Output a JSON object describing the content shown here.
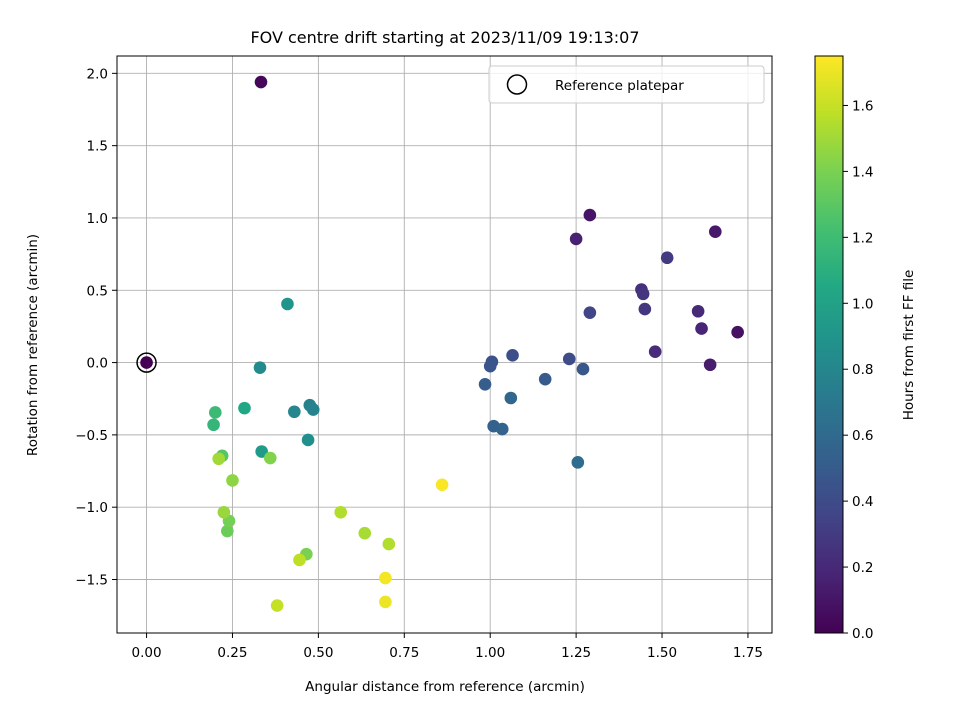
{
  "chart_data": {
    "type": "scatter",
    "title": "FOV centre drift starting at 2023/11/09 19:13:07",
    "xlabel": "Angular distance from reference (arcmin)",
    "ylabel": "Rotation from reference (arcmin)",
    "xlim": [
      -0.086,
      1.82
    ],
    "ylim": [
      -1.87,
      2.12
    ],
    "grid": true,
    "legend": {
      "placement": "top-right",
      "label": "Reference platepar"
    },
    "reference": {
      "x": 0.0,
      "y": 0.0
    },
    "xticks": [
      0.0,
      0.25,
      0.5,
      0.75,
      1.0,
      1.25,
      1.5,
      1.75
    ],
    "xtick_labels": [
      "0.00",
      "0.25",
      "0.50",
      "0.75",
      "1.00",
      "1.25",
      "1.50",
      "1.75"
    ],
    "yticks": [
      -1.5,
      -1.0,
      -0.5,
      0.0,
      0.5,
      1.0,
      1.5,
      2.0
    ],
    "ytick_labels": [
      "−1.5",
      "−1.0",
      "−0.5",
      "0.0",
      "0.5",
      "1.0",
      "1.5",
      "2.0"
    ],
    "colorbar": {
      "label": "Hours from first FF file",
      "colormap": "viridis",
      "range": [
        0.0,
        1.75
      ],
      "ticks": [
        0.0,
        0.2,
        0.4,
        0.6,
        0.8,
        1.0,
        1.2,
        1.4,
        1.6
      ],
      "tick_labels": [
        "0.0",
        "0.2",
        "0.4",
        "0.6",
        "0.8",
        "1.0",
        "1.2",
        "1.4",
        "1.6"
      ]
    },
    "points": [
      {
        "x": 0.0,
        "y": 0.0,
        "c": 0.0
      },
      {
        "x": 0.333,
        "y": 1.94,
        "c": 0.03
      },
      {
        "x": 1.72,
        "y": 0.21,
        "c": 0.08
      },
      {
        "x": 1.29,
        "y": 1.02,
        "c": 0.1
      },
      {
        "x": 1.655,
        "y": 0.905,
        "c": 0.12
      },
      {
        "x": 1.64,
        "y": -0.015,
        "c": 0.14
      },
      {
        "x": 1.25,
        "y": 0.855,
        "c": 0.16
      },
      {
        "x": 1.615,
        "y": 0.235,
        "c": 0.18
      },
      {
        "x": 1.605,
        "y": 0.355,
        "c": 0.2
      },
      {
        "x": 1.48,
        "y": 0.075,
        "c": 0.22
      },
      {
        "x": 1.44,
        "y": 0.505,
        "c": 0.24
      },
      {
        "x": 1.445,
        "y": 0.475,
        "c": 0.26
      },
      {
        "x": 1.45,
        "y": 0.37,
        "c": 0.28
      },
      {
        "x": 1.515,
        "y": 0.725,
        "c": 0.3
      },
      {
        "x": 1.29,
        "y": 0.345,
        "c": 0.36
      },
      {
        "x": 1.23,
        "y": 0.025,
        "c": 0.4
      },
      {
        "x": 1.065,
        "y": 0.05,
        "c": 0.42
      },
      {
        "x": 1.005,
        "y": 0.005,
        "c": 0.44
      },
      {
        "x": 1.0,
        "y": -0.025,
        "c": 0.46
      },
      {
        "x": 1.27,
        "y": -0.045,
        "c": 0.48
      },
      {
        "x": 1.16,
        "y": -0.115,
        "c": 0.5
      },
      {
        "x": 0.985,
        "y": -0.15,
        "c": 0.52
      },
      {
        "x": 1.01,
        "y": -0.44,
        "c": 0.54
      },
      {
        "x": 1.035,
        "y": -0.46,
        "c": 0.56
      },
      {
        "x": 1.06,
        "y": -0.245,
        "c": 0.58
      },
      {
        "x": 1.255,
        "y": -0.69,
        "c": 0.62
      },
      {
        "x": 0.475,
        "y": -0.295,
        "c": 0.76
      },
      {
        "x": 0.485,
        "y": -0.325,
        "c": 0.78
      },
      {
        "x": 0.43,
        "y": -0.34,
        "c": 0.8
      },
      {
        "x": 0.33,
        "y": -0.035,
        "c": 0.83
      },
      {
        "x": 0.47,
        "y": -0.535,
        "c": 0.87
      },
      {
        "x": 0.41,
        "y": 0.405,
        "c": 0.9
      },
      {
        "x": 0.335,
        "y": -0.615,
        "c": 0.95
      },
      {
        "x": 0.285,
        "y": -0.315,
        "c": 1.04
      },
      {
        "x": 0.195,
        "y": -0.43,
        "c": 1.15
      },
      {
        "x": 0.2,
        "y": -0.345,
        "c": 1.18
      },
      {
        "x": 0.22,
        "y": -0.645,
        "c": 1.28
      },
      {
        "x": 0.235,
        "y": -1.165,
        "c": 1.35
      },
      {
        "x": 0.24,
        "y": -1.095,
        "c": 1.38
      },
      {
        "x": 0.465,
        "y": -1.325,
        "c": 1.4
      },
      {
        "x": 0.36,
        "y": -0.66,
        "c": 1.42
      },
      {
        "x": 0.25,
        "y": -0.815,
        "c": 1.45
      },
      {
        "x": 0.225,
        "y": -1.035,
        "c": 1.48
      },
      {
        "x": 0.21,
        "y": -0.665,
        "c": 1.5
      },
      {
        "x": 0.635,
        "y": -1.18,
        "c": 1.52
      },
      {
        "x": 0.705,
        "y": -1.255,
        "c": 1.55
      },
      {
        "x": 0.565,
        "y": -1.035,
        "c": 1.55
      },
      {
        "x": 0.445,
        "y": -1.365,
        "c": 1.58
      },
      {
        "x": 0.38,
        "y": -1.68,
        "c": 1.6
      },
      {
        "x": 0.695,
        "y": -1.655,
        "c": 1.7
      },
      {
        "x": 0.695,
        "y": -1.49,
        "c": 1.72
      },
      {
        "x": 0.86,
        "y": -0.845,
        "c": 1.74
      }
    ]
  }
}
